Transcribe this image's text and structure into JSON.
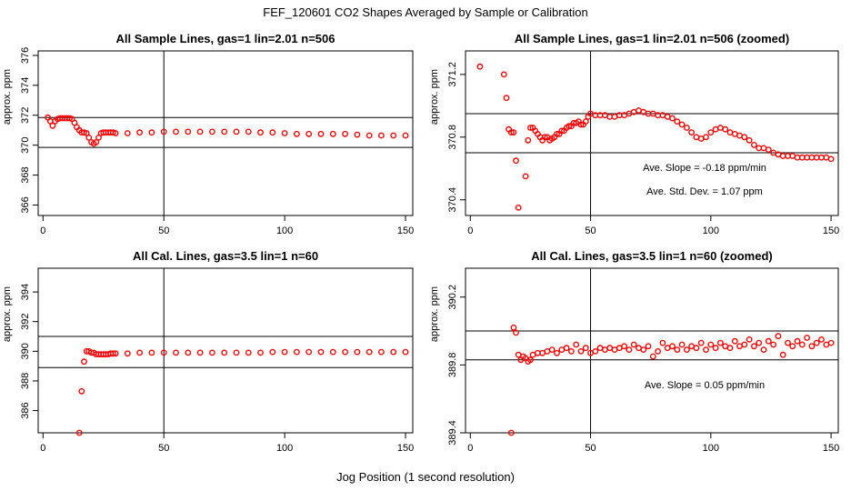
{
  "figure": {
    "title": "FEF_120601  CO2 Shapes Averaged by Sample or Calibration",
    "xlabel": "Jog Position (1 second resolution)",
    "colors": {
      "points": "#ff0000",
      "lines": "#000000"
    }
  },
  "chart_data": [
    {
      "type": "scatter",
      "title": "All Sample Lines, gas=1 lin=2.01 n=506",
      "ylabel": "approx. ppm",
      "xlim": [
        -2,
        153
      ],
      "ylim": [
        365.3,
        376.3
      ],
      "xticks": [
        "0",
        "50",
        "100",
        "150"
      ],
      "xtick_values": [
        0,
        50,
        100,
        150
      ],
      "yticks": [
        "366",
        "368",
        "370",
        "372",
        "374",
        "376"
      ],
      "ytick_values": [
        366,
        368,
        370,
        372,
        374,
        376
      ],
      "hlines": [
        371.85,
        369.85
      ],
      "vline": 50,
      "annotations": [],
      "series": [
        {
          "x": [
            2,
            3,
            4,
            5,
            6,
            7,
            8,
            9,
            10,
            11,
            12,
            13,
            14,
            15,
            16,
            17,
            18,
            19,
            20,
            21,
            22,
            23,
            24,
            25,
            26,
            27,
            28,
            29,
            30,
            35,
            40,
            45,
            50,
            55,
            60,
            65,
            70,
            75,
            80,
            85,
            90,
            95,
            100,
            105,
            110,
            115,
            120,
            125,
            130,
            135,
            140,
            145,
            150
          ],
          "y": [
            371.85,
            371.6,
            371.3,
            371.6,
            371.75,
            371.8,
            371.8,
            371.8,
            371.8,
            371.8,
            371.75,
            371.5,
            371.2,
            371.0,
            370.85,
            370.85,
            370.8,
            370.5,
            370.2,
            370.1,
            370.2,
            370.5,
            370.8,
            370.85,
            370.85,
            370.85,
            370.85,
            370.85,
            370.8,
            370.8,
            370.85,
            370.85,
            370.9,
            370.9,
            370.9,
            370.9,
            370.9,
            370.9,
            370.9,
            370.9,
            370.85,
            370.85,
            370.8,
            370.75,
            370.75,
            370.75,
            370.75,
            370.75,
            370.7,
            370.65,
            370.65,
            370.65,
            370.65
          ]
        }
      ]
    },
    {
      "type": "scatter",
      "title": "All Sample Lines, gas=1 lin=2.01 n=506 (zoomed)",
      "ylabel": "approx. ppm",
      "xlim": [
        -2,
        153
      ],
      "ylim": [
        370.3,
        371.35
      ],
      "xticks": [
        "0",
        "50",
        "100",
        "150"
      ],
      "xtick_values": [
        0,
        50,
        100,
        150
      ],
      "yticks": [
        "370.4",
        "370.8",
        "371.2"
      ],
      "ytick_values": [
        370.4,
        370.8,
        371.2
      ],
      "hlines": [
        370.95,
        370.7
      ],
      "vline": 50,
      "annotations": [
        "Ave. Slope =  -0.18  ppm/min",
        "Ave. Std. Dev. =  1.07  ppm"
      ],
      "series": [
        {
          "x": [
            4,
            14,
            15,
            16,
            17,
            18,
            19,
            20,
            23,
            24,
            25,
            26,
            27,
            28,
            29,
            30,
            31,
            32,
            33,
            34,
            35,
            36,
            37,
            38,
            39,
            40,
            41,
            42,
            43,
            44,
            45,
            46,
            47,
            48,
            49,
            50,
            52,
            54,
            56,
            58,
            60,
            62,
            64,
            66,
            68,
            70,
            72,
            74,
            76,
            78,
            80,
            82,
            84,
            86,
            88,
            90,
            92,
            94,
            96,
            98,
            100,
            102,
            104,
            106,
            108,
            110,
            112,
            114,
            116,
            118,
            120,
            122,
            124,
            126,
            128,
            130,
            132,
            134,
            136,
            138,
            140,
            142,
            144,
            146,
            148,
            150
          ],
          "y": [
            371.25,
            371.2,
            371.05,
            370.85,
            370.83,
            370.83,
            370.65,
            370.35,
            370.55,
            370.78,
            370.86,
            370.86,
            370.84,
            370.82,
            370.8,
            370.78,
            370.8,
            370.8,
            370.78,
            370.79,
            370.8,
            370.82,
            370.82,
            370.84,
            370.84,
            370.86,
            370.87,
            370.87,
            370.89,
            370.89,
            370.9,
            370.88,
            370.88,
            370.9,
            370.93,
            370.95,
            370.94,
            370.94,
            370.94,
            370.93,
            370.93,
            370.94,
            370.94,
            370.95,
            370.96,
            370.97,
            370.96,
            370.95,
            370.95,
            370.94,
            370.94,
            370.93,
            370.92,
            370.9,
            370.88,
            370.86,
            370.83,
            370.8,
            370.79,
            370.8,
            370.83,
            370.85,
            370.86,
            370.85,
            370.83,
            370.82,
            370.81,
            370.8,
            370.78,
            370.75,
            370.73,
            370.73,
            370.72,
            370.7,
            370.69,
            370.68,
            370.68,
            370.68,
            370.67,
            370.67,
            370.67,
            370.67,
            370.67,
            370.67,
            370.67,
            370.66
          ]
        }
      ]
    },
    {
      "type": "scatter",
      "title": "All Cal. Lines, gas=3.5 lin=1 n=60",
      "ylabel": "approx. ppm",
      "xlim": [
        -2,
        153
      ],
      "ylim": [
        384.5,
        395.6
      ],
      "xticks": [
        "0",
        "50",
        "100",
        "150"
      ],
      "xtick_values": [
        0,
        50,
        100,
        150
      ],
      "yticks": [
        "386",
        "388",
        "390",
        "392",
        "394"
      ],
      "ytick_values": [
        386,
        388,
        390,
        392,
        394
      ],
      "hlines": [
        391.0,
        388.9
      ],
      "vline": 50,
      "annotations": [],
      "series": [
        {
          "x": [
            15,
            16,
            17,
            18,
            19,
            20,
            21,
            22,
            23,
            24,
            25,
            26,
            27,
            28,
            29,
            30,
            35,
            40,
            45,
            50,
            55,
            60,
            65,
            70,
            75,
            80,
            85,
            90,
            95,
            100,
            105,
            110,
            115,
            120,
            125,
            130,
            135,
            140,
            145,
            150
          ],
          "y": [
            384.5,
            387.3,
            389.3,
            390.0,
            390.0,
            389.9,
            389.9,
            389.8,
            389.8,
            389.8,
            389.8,
            389.8,
            389.8,
            389.85,
            389.85,
            389.85,
            389.85,
            389.9,
            389.9,
            389.9,
            389.9,
            389.9,
            389.9,
            389.9,
            389.9,
            389.9,
            389.9,
            389.9,
            389.95,
            389.95,
            389.95,
            389.95,
            389.95,
            389.95,
            389.95,
            389.95,
            389.95,
            389.95,
            389.95,
            389.95
          ]
        }
      ]
    },
    {
      "type": "scatter",
      "title": "All Cal. Lines, gas=3.5 lin=1 n=60 (zoomed)",
      "ylabel": "approx. ppm",
      "xlim": [
        -2,
        153
      ],
      "ylim": [
        389.4,
        390.37
      ],
      "xticks": [
        "0",
        "50",
        "100",
        "150"
      ],
      "xtick_values": [
        0,
        50,
        100,
        150
      ],
      "yticks": [
        "389.4",
        "389.8",
        "390.2"
      ],
      "ytick_values": [
        389.4,
        389.8,
        390.2
      ],
      "hlines": [
        390.0,
        389.83
      ],
      "vline": 50,
      "annotations": [
        "Ave. Slope =  0.05  ppm/min"
      ],
      "series": [
        {
          "x": [
            17,
            18,
            19,
            20,
            21,
            22,
            23,
            24,
            25,
            26,
            28,
            30,
            32,
            34,
            36,
            38,
            40,
            42,
            44,
            46,
            48,
            50,
            52,
            54,
            56,
            58,
            60,
            62,
            64,
            66,
            68,
            70,
            72,
            74,
            76,
            78,
            80,
            82,
            84,
            86,
            88,
            90,
            92,
            94,
            96,
            98,
            100,
            102,
            104,
            106,
            108,
            110,
            112,
            114,
            116,
            118,
            120,
            122,
            124,
            126,
            128,
            130,
            132,
            134,
            136,
            138,
            140,
            142,
            144,
            146,
            148,
            150
          ],
          "y": [
            389.4,
            390.02,
            389.99,
            389.86,
            389.83,
            389.85,
            389.84,
            389.82,
            389.83,
            389.86,
            389.87,
            389.87,
            389.88,
            389.89,
            389.87,
            389.89,
            389.9,
            389.88,
            389.92,
            389.88,
            389.9,
            389.87,
            389.88,
            389.9,
            389.89,
            389.9,
            389.89,
            389.9,
            389.91,
            389.89,
            389.92,
            389.9,
            389.89,
            389.91,
            389.85,
            389.88,
            389.93,
            389.9,
            389.91,
            389.89,
            389.92,
            389.89,
            389.91,
            389.9,
            389.93,
            389.89,
            389.92,
            389.9,
            389.93,
            389.91,
            389.9,
            389.94,
            389.91,
            389.92,
            389.95,
            389.91,
            389.93,
            389.89,
            389.94,
            389.92,
            389.97,
            389.86,
            389.93,
            389.91,
            389.94,
            389.92,
            389.96,
            389.91,
            389.93,
            389.95,
            389.92,
            389.93
          ]
        }
      ]
    }
  ]
}
